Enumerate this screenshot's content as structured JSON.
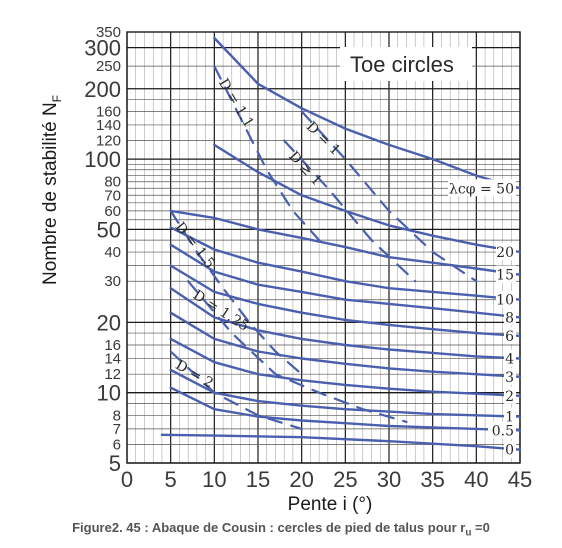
{
  "chart_data": {
    "type": "line",
    "title": "",
    "annotation": "Toe circles",
    "xlabel": "Pente i  (°)",
    "ylabel": "Nombre de stabilité N",
    "ylabel_subscript": "F",
    "xlim": [
      0,
      45
    ],
    "ylim": [
      5,
      350
    ],
    "yscale": "log",
    "grid": true,
    "x_ticks": [
      "0",
      "5",
      "10",
      "15",
      "20",
      "25",
      "30",
      "35",
      "40",
      "45"
    ],
    "y_ticks": [
      {
        "v": 350,
        "t": "350",
        "big": false
      },
      {
        "v": 300,
        "t": "300",
        "big": true
      },
      {
        "v": 250,
        "t": "250",
        "big": false
      },
      {
        "v": 200,
        "t": "200",
        "big": true
      },
      {
        "v": 160,
        "t": "160",
        "big": false
      },
      {
        "v": 140,
        "t": "140",
        "big": false
      },
      {
        "v": 120,
        "t": "120",
        "big": false
      },
      {
        "v": 100,
        "t": "100",
        "big": true
      },
      {
        "v": 80,
        "t": "80",
        "big": false
      },
      {
        "v": 70,
        "t": "70",
        "big": false
      },
      {
        "v": 60,
        "t": "60",
        "big": false
      },
      {
        "v": 50,
        "t": "50",
        "big": true
      },
      {
        "v": 40,
        "t": "40",
        "big": false
      },
      {
        "v": 30,
        "t": "30",
        "big": false
      },
      {
        "v": 20,
        "t": "20",
        "big": true
      },
      {
        "v": 16,
        "t": "16",
        "big": false
      },
      {
        "v": 14,
        "t": "14",
        "big": false
      },
      {
        "v": 12,
        "t": "12",
        "big": false
      },
      {
        "v": 10,
        "t": "10",
        "big": true
      },
      {
        "v": 8,
        "t": "8",
        "big": false
      },
      {
        "v": 7,
        "t": "7",
        "big": false
      },
      {
        "v": 6,
        "t": "6",
        "big": false
      },
      {
        "v": 5,
        "t": "5",
        "big": true
      }
    ],
    "series": [
      {
        "label": "λcφ = 50",
        "x": [
          10,
          15,
          20,
          25,
          30,
          35,
          40,
          45
        ],
        "y": [
          330,
          210,
          165,
          135,
          115,
          100,
          85,
          75
        ]
      },
      {
        "label": "20",
        "x": [
          10,
          15,
          20,
          25,
          30,
          35,
          40,
          45
        ],
        "y": [
          115,
          88,
          70,
          60,
          52,
          47,
          43,
          40
        ]
      },
      {
        "label": "15",
        "x": [
          5,
          10,
          15,
          20,
          25,
          30,
          35,
          40,
          45
        ],
        "y": [
          60,
          56,
          50,
          46,
          42,
          38,
          36,
          34,
          32
        ]
      },
      {
        "label": "10",
        "x": [
          5,
          10,
          15,
          20,
          25,
          30,
          35,
          40,
          45
        ],
        "y": [
          51,
          41,
          36,
          33,
          30,
          28,
          27,
          26,
          25
        ]
      },
      {
        "label": "8",
        "x": [
          5,
          10,
          15,
          20,
          25,
          30,
          35,
          40,
          45
        ],
        "y": [
          43,
          33,
          29,
          27,
          25,
          24,
          23,
          22,
          21
        ]
      },
      {
        "label": "6",
        "x": [
          5,
          10,
          15,
          20,
          25,
          30,
          35,
          40,
          45
        ],
        "y": [
          35,
          27,
          24,
          22,
          20.5,
          19.5,
          18.7,
          18,
          17.5
        ]
      },
      {
        "label": "4",
        "x": [
          5,
          10,
          15,
          20,
          25,
          30,
          35,
          40,
          45
        ],
        "y": [
          28,
          21,
          18.5,
          17,
          16,
          15.3,
          14.8,
          14.3,
          14
        ]
      },
      {
        "label": "3",
        "x": [
          5,
          10,
          15,
          20,
          25,
          30,
          35,
          40,
          45
        ],
        "y": [
          22,
          17,
          15,
          14,
          13.3,
          12.7,
          12.3,
          12,
          11.7
        ]
      },
      {
        "label": "2",
        "x": [
          5,
          10,
          15,
          20,
          25,
          30,
          35,
          40,
          45
        ],
        "y": [
          17,
          13.5,
          12,
          11.3,
          10.8,
          10.4,
          10.1,
          9.9,
          9.7
        ]
      },
      {
        "label": "1",
        "x": [
          5,
          10,
          15,
          20,
          25,
          30,
          35,
          40,
          45
        ],
        "y": [
          12.5,
          10,
          9.2,
          8.8,
          8.5,
          8.3,
          8.1,
          8,
          7.9
        ]
      },
      {
        "label": "0.5",
        "x": [
          5,
          10,
          15,
          20,
          25,
          30,
          35,
          40,
          45
        ],
        "y": [
          10.5,
          8.5,
          7.9,
          7.6,
          7.4,
          7.2,
          7.1,
          7,
          6.9
        ]
      },
      {
        "label": "0",
        "x": [
          4,
          10,
          20,
          30,
          40,
          45
        ],
        "y": [
          6.6,
          6.55,
          6.45,
          6.2,
          5.9,
          5.7
        ]
      }
    ],
    "d_lines": [
      {
        "label": "D = 1",
        "x": [
          20,
          25,
          30,
          35,
          40
        ],
        "y": [
          160,
          100,
          60,
          40,
          30
        ]
      },
      {
        "label": "D ≥ 1",
        "x": [
          18,
          23,
          28,
          33
        ],
        "y": [
          120,
          75,
          45,
          30
        ]
      },
      {
        "label": "D = 1.1",
        "x": [
          10,
          13,
          16,
          19,
          22
        ],
        "y": [
          250,
          150,
          90,
          60,
          45
        ]
      },
      {
        "label": "D = 1.5",
        "x": [
          5,
          8,
          11,
          14,
          17,
          20
        ],
        "y": [
          60,
          40,
          28,
          20,
          15,
          12
        ]
      },
      {
        "label": "D = 1.25",
        "x": [
          7,
          12,
          17,
          22,
          27,
          32
        ],
        "y": [
          30,
          18,
          12,
          10,
          8.5,
          7.5
        ]
      },
      {
        "label": "D = 2",
        "x": [
          5,
          10,
          15,
          20
        ],
        "y": [
          15,
          10,
          8,
          7
        ]
      }
    ],
    "caption": "Figure2. 45 : Abaque de Cousin : cercles de pied de talus  pour  r",
    "caption_subscript": "u",
    "caption_tail": " =0"
  }
}
